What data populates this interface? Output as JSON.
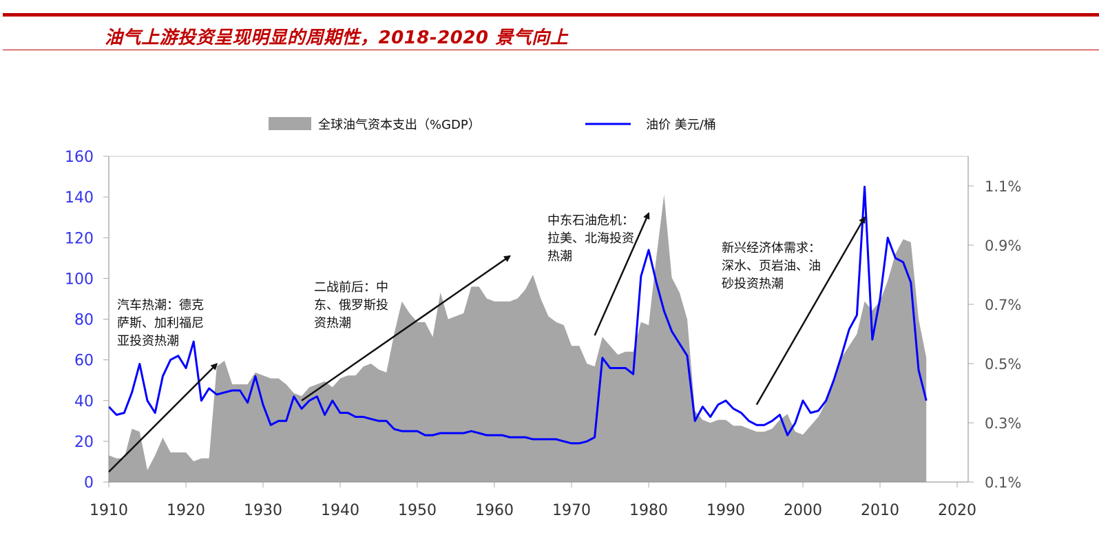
{
  "header": {
    "title": "油气上游投资呈现明显的周期性，2018-2020 景气向上"
  },
  "chart_data": {
    "type": "area+line",
    "title": "油气上游投资呈现明显的周期性，2018-2020 景气向上",
    "legend": [
      {
        "name": "全球油气资本支出（%GDP）",
        "kind": "area",
        "color": "#a6a6a6",
        "axis": "right"
      },
      {
        "name": "油价 美元/桶",
        "kind": "line",
        "color": "#0000ff",
        "axis": "left"
      }
    ],
    "legend_position": "top",
    "xlabel": "",
    "ylabel_left": "",
    "ylabel_right": "",
    "x_ticks": [
      "1910",
      "1920",
      "1930",
      "1940",
      "1950",
      "1960",
      "1970",
      "1980",
      "1990",
      "2000",
      "2010",
      "2020"
    ],
    "xlim": [
      1910,
      2021.5
    ],
    "y_left_ticks": [
      "0",
      "20",
      "40",
      "60",
      "80",
      "100",
      "120",
      "140",
      "160"
    ],
    "ylim_left": [
      0,
      160
    ],
    "y_right_ticks": [
      "0.1%",
      "0.3%",
      "0.5%",
      "0.7%",
      "0.9%",
      "1.1%"
    ],
    "ylim_right": [
      0.1,
      1.2
    ],
    "grid": false,
    "series": [
      {
        "name": "全球油气资本支出（%GDP）",
        "axis": "right",
        "x": [
          1910,
          1911,
          1912,
          1913,
          1914,
          1915,
          1916,
          1917,
          1918,
          1919,
          1920,
          1921,
          1922,
          1923,
          1924,
          1925,
          1926,
          1927,
          1928,
          1929,
          1930,
          1931,
          1932,
          1933,
          1934,
          1935,
          1936,
          1937,
          1938,
          1939,
          1940,
          1941,
          1942,
          1943,
          1944,
          1945,
          1946,
          1947,
          1948,
          1949,
          1950,
          1951,
          1952,
          1953,
          1954,
          1955,
          1956,
          1957,
          1958,
          1959,
          1960,
          1961,
          1962,
          1963,
          1964,
          1965,
          1966,
          1967,
          1968,
          1969,
          1970,
          1971,
          1972,
          1973,
          1974,
          1975,
          1976,
          1977,
          1978,
          1979,
          1980,
          1981,
          1982,
          1983,
          1984,
          1985,
          1986,
          1987,
          1988,
          1989,
          1990,
          1991,
          1992,
          1993,
          1994,
          1995,
          1996,
          1997,
          1998,
          1999,
          2000,
          2001,
          2002,
          2003,
          2004,
          2005,
          2006,
          2007,
          2008,
          2009,
          2010,
          2011,
          2012,
          2013,
          2014,
          2015,
          2016
        ],
        "values": [
          0.19,
          0.18,
          0.18,
          0.28,
          0.27,
          0.14,
          0.19,
          0.25,
          0.2,
          0.2,
          0.2,
          0.17,
          0.18,
          0.18,
          0.49,
          0.51,
          0.43,
          0.43,
          0.43,
          0.47,
          0.46,
          0.45,
          0.45,
          0.43,
          0.4,
          0.39,
          0.42,
          0.43,
          0.44,
          0.42,
          0.45,
          0.46,
          0.46,
          0.49,
          0.5,
          0.48,
          0.47,
          0.6,
          0.71,
          0.67,
          0.64,
          0.64,
          0.59,
          0.74,
          0.65,
          0.66,
          0.67,
          0.76,
          0.76,
          0.72,
          0.71,
          0.71,
          0.71,
          0.72,
          0.75,
          0.8,
          0.72,
          0.66,
          0.64,
          0.63,
          0.56,
          0.56,
          0.5,
          0.49,
          0.59,
          0.56,
          0.53,
          0.54,
          0.54,
          0.64,
          0.63,
          0.86,
          1.07,
          0.79,
          0.74,
          0.65,
          0.34,
          0.31,
          0.3,
          0.31,
          0.31,
          0.29,
          0.29,
          0.28,
          0.27,
          0.27,
          0.28,
          0.31,
          0.33,
          0.27,
          0.26,
          0.29,
          0.32,
          0.37,
          0.44,
          0.52,
          0.56,
          0.6,
          0.71,
          0.68,
          0.71,
          0.78,
          0.87,
          0.92,
          0.91,
          0.65,
          0.52
        ]
      },
      {
        "name": "油价 美元/桶",
        "axis": "left",
        "x": [
          1910,
          1911,
          1912,
          1913,
          1914,
          1915,
          1916,
          1917,
          1918,
          1919,
          1920,
          1921,
          1922,
          1923,
          1924,
          1925,
          1926,
          1927,
          1928,
          1929,
          1930,
          1931,
          1932,
          1933,
          1934,
          1935,
          1936,
          1937,
          1938,
          1939,
          1940,
          1941,
          1942,
          1943,
          1944,
          1945,
          1946,
          1947,
          1948,
          1949,
          1950,
          1951,
          1952,
          1953,
          1954,
          1955,
          1956,
          1957,
          1958,
          1959,
          1960,
          1961,
          1962,
          1963,
          1964,
          1965,
          1966,
          1967,
          1968,
          1969,
          1970,
          1971,
          1972,
          1973,
          1974,
          1975,
          1976,
          1977,
          1978,
          1979,
          1980,
          1981,
          1982,
          1983,
          1984,
          1985,
          1986,
          1987,
          1988,
          1989,
          1990,
          1991,
          1992,
          1993,
          1994,
          1995,
          1996,
          1997,
          1998,
          1999,
          2000,
          2001,
          2002,
          2003,
          2004,
          2005,
          2006,
          2007,
          2008,
          2009,
          2010,
          2011,
          2012,
          2013,
          2014,
          2015,
          2016
        ],
        "values": [
          37,
          33,
          34,
          44,
          58,
          40,
          34,
          52,
          60,
          62,
          56,
          69,
          40,
          46,
          43,
          44,
          45,
          45,
          39,
          52,
          38,
          28,
          30,
          30,
          42,
          36,
          40,
          42,
          33,
          40,
          34,
          34,
          32,
          32,
          31,
          30,
          30,
          26,
          25,
          25,
          25,
          23,
          23,
          24,
          24,
          24,
          24,
          25,
          24,
          23,
          23,
          23,
          22,
          22,
          22,
          21,
          21,
          21,
          21,
          20,
          19,
          19,
          20,
          22,
          61,
          56,
          56,
          56,
          53,
          101,
          114,
          98,
          84,
          74,
          68,
          62,
          30,
          37,
          32,
          38,
          40,
          36,
          34,
          30,
          28,
          28,
          30,
          33,
          23,
          29,
          40,
          34,
          35,
          40,
          50,
          62,
          75,
          82,
          145,
          70,
          90,
          120,
          110,
          108,
          98,
          55,
          40
        ]
      }
    ],
    "annotations": [
      {
        "text": [
          "汽车热潮：德克",
          "萨斯、加利福尼",
          "亚投资热潮"
        ],
        "arrow_from": [
          1910,
          5
        ],
        "arrow_to": [
          1924,
          58
        ]
      },
      {
        "text": [
          "二战前后：中",
          "东、俄罗斯投",
          "资热潮"
        ],
        "arrow_from": [
          1935,
          40
        ],
        "arrow_to": [
          1962,
          111
        ]
      },
      {
        "text": [
          "中东石油危机：",
          "拉美、北海投资",
          "热潮"
        ],
        "arrow_from": [
          1973,
          72
        ],
        "arrow_to": [
          1980,
          132
        ]
      },
      {
        "text": [
          "新兴经济体需求：",
          "深水、页岩油、油",
          "砂投资热潮"
        ],
        "arrow_from": [
          1994,
          38
        ],
        "arrow_to": [
          2008,
          130
        ]
      }
    ]
  },
  "colors": {
    "title": "#c00000",
    "area": "#a6a6a6",
    "line": "#0000ff",
    "left_axis_text": "#3333ee",
    "right_axis_text": "#555555",
    "arrow": "#111111"
  }
}
